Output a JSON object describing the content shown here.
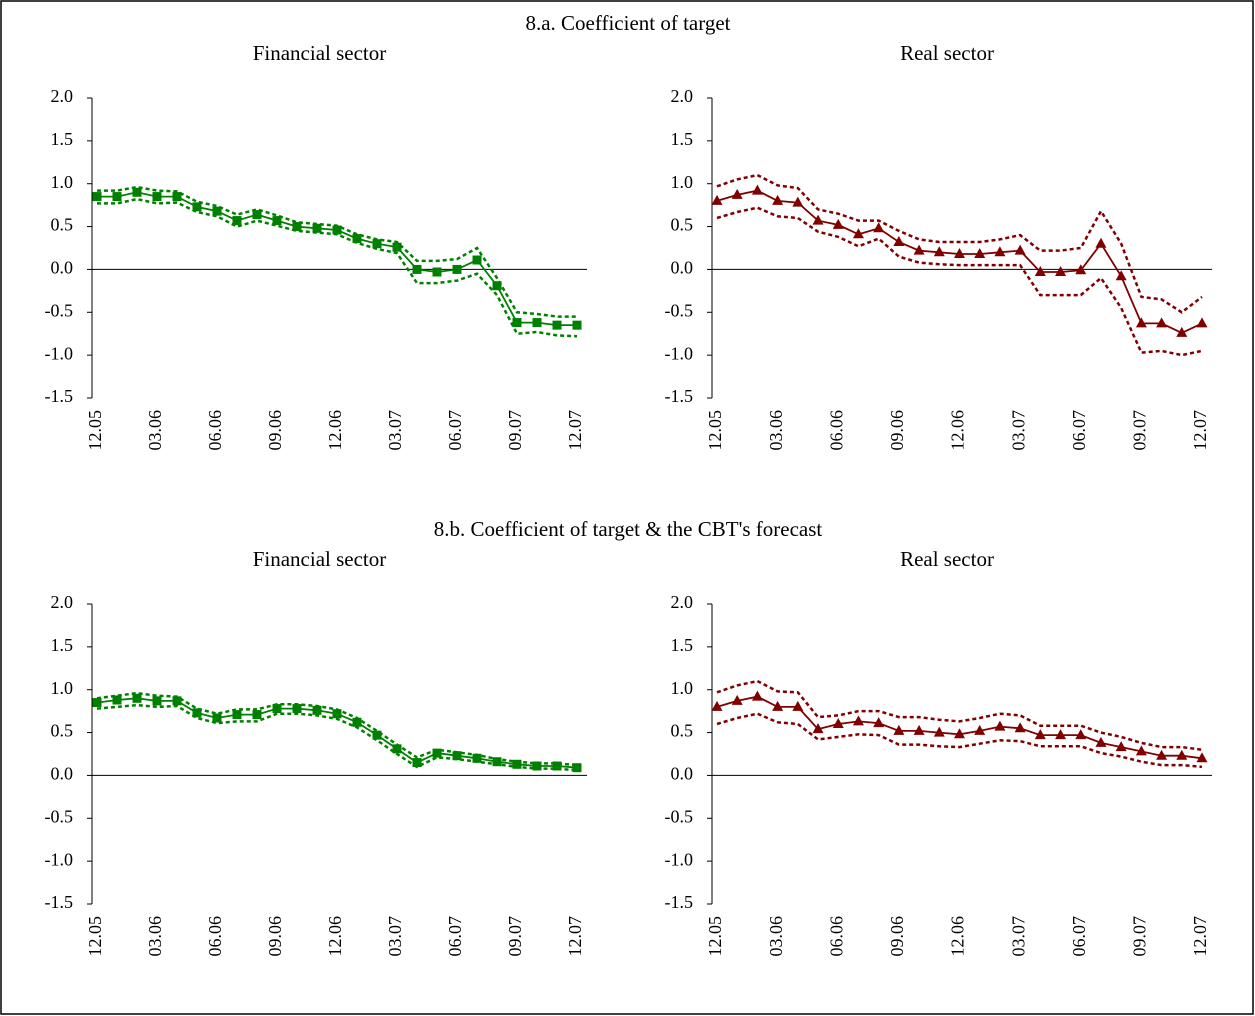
{
  "section_titles": [
    "8.a. Coefficient of target",
    "8.b. Coefficient of  target & the CBT's forecast"
  ],
  "chart_data": [
    {
      "type": "line",
      "title": "Financial sector",
      "section": 0,
      "categories": [
        "12.05",
        null,
        null,
        "03.06",
        null,
        null,
        "06.06",
        null,
        null,
        "09.06",
        null,
        null,
        "12.06",
        null,
        null,
        "03.07",
        null,
        null,
        "06.07",
        null,
        null,
        "09.07",
        null,
        null,
        "12.07"
      ],
      "ylim": [
        -1.5,
        2.0
      ],
      "yticks": [
        {
          "value": -1.5,
          "label": "-1.5"
        },
        {
          "value": -1.0,
          "label": "-1.0"
        },
        {
          "value": -0.5,
          "label": "-0.5"
        },
        {
          "value": 0.0,
          "label": "0.0"
        },
        {
          "value": 0.5,
          "label": "0.5"
        },
        {
          "value": 1.0,
          "label": "1.0"
        },
        {
          "value": 1.5,
          "label": "1.5"
        },
        {
          "value": 2.0,
          "label": "2.0"
        }
      ],
      "series": [
        {
          "color": "#008000",
          "style": "solid",
          "marker": "square",
          "values": [
            0.85,
            0.85,
            0.9,
            0.85,
            0.85,
            0.73,
            0.68,
            0.57,
            0.64,
            0.57,
            0.5,
            0.48,
            0.46,
            0.36,
            0.3,
            0.26,
            0.0,
            -0.03,
            0.0,
            0.11,
            -0.19,
            -0.62,
            -0.62,
            -0.65,
            -0.65
          ]
        },
        {
          "color": "#008000",
          "style": "dashed",
          "values": [
            0.92,
            0.92,
            0.96,
            0.92,
            0.91,
            0.79,
            0.74,
            0.64,
            0.7,
            0.63,
            0.55,
            0.53,
            0.51,
            0.41,
            0.35,
            0.32,
            0.1,
            0.1,
            0.12,
            0.25,
            -0.1,
            -0.5,
            -0.52,
            -0.55,
            -0.55
          ]
        },
        {
          "color": "#008000",
          "style": "dashed",
          "values": [
            0.77,
            0.77,
            0.82,
            0.77,
            0.78,
            0.67,
            0.62,
            0.5,
            0.57,
            0.51,
            0.45,
            0.43,
            0.41,
            0.31,
            0.24,
            0.19,
            -0.16,
            -0.16,
            -0.13,
            -0.05,
            -0.3,
            -0.75,
            -0.73,
            -0.77,
            -0.78
          ]
        }
      ]
    },
    {
      "type": "line",
      "title": "Real sector",
      "section": 0,
      "categories": [
        "12.05",
        null,
        null,
        "03.06",
        null,
        null,
        "06.06",
        null,
        null,
        "09.06",
        null,
        null,
        "12.06",
        null,
        null,
        "03.07",
        null,
        null,
        "06.07",
        null,
        null,
        "09.07",
        null,
        null,
        "12.07"
      ],
      "ylim": [
        -1.5,
        2.0
      ],
      "yticks": [
        {
          "value": -1.5,
          "label": "-1.5"
        },
        {
          "value": -1.0,
          "label": "-1.0"
        },
        {
          "value": -0.5,
          "label": "-0.5"
        },
        {
          "value": 0.0,
          "label": "0.0"
        },
        {
          "value": 0.5,
          "label": "0.5"
        },
        {
          "value": 1.0,
          "label": "1.0"
        },
        {
          "value": 1.5,
          "label": "1.5"
        },
        {
          "value": 2.0,
          "label": "2.0"
        }
      ],
      "series": [
        {
          "color": "#800000",
          "style": "solid",
          "marker": "triangle",
          "values": [
            0.8,
            0.87,
            0.92,
            0.8,
            0.78,
            0.57,
            0.52,
            0.41,
            0.48,
            0.32,
            0.22,
            0.2,
            0.18,
            0.18,
            0.2,
            0.22,
            -0.03,
            -0.03,
            -0.01,
            0.3,
            -0.08,
            -0.63,
            -0.63,
            -0.74,
            -0.63
          ]
        },
        {
          "color": "#800000",
          "style": "dashed",
          "values": [
            0.97,
            1.05,
            1.1,
            0.98,
            0.95,
            0.7,
            0.65,
            0.57,
            0.57,
            0.45,
            0.35,
            0.32,
            0.32,
            0.32,
            0.35,
            0.4,
            0.22,
            0.22,
            0.25,
            0.68,
            0.3,
            -0.32,
            -0.35,
            -0.5,
            -0.32
          ]
        },
        {
          "color": "#800000",
          "style": "dashed",
          "values": [
            0.6,
            0.67,
            0.72,
            0.62,
            0.6,
            0.44,
            0.38,
            0.27,
            0.36,
            0.15,
            0.08,
            0.06,
            0.05,
            0.05,
            0.05,
            0.05,
            -0.3,
            -0.3,
            -0.3,
            -0.1,
            -0.45,
            -0.97,
            -0.95,
            -1.0,
            -0.95
          ]
        }
      ]
    },
    {
      "type": "line",
      "title": "Financial sector",
      "section": 1,
      "categories": [
        "12.05",
        null,
        null,
        "03.06",
        null,
        null,
        "06.06",
        null,
        null,
        "09.06",
        null,
        null,
        "12.06",
        null,
        null,
        "03.07",
        null,
        null,
        "06.07",
        null,
        null,
        "09.07",
        null,
        null,
        "12.07"
      ],
      "ylim": [
        -1.5,
        2.0
      ],
      "yticks": [
        {
          "value": -1.5,
          "label": "-1.5"
        },
        {
          "value": -1.0,
          "label": "-1.0"
        },
        {
          "value": -0.5,
          "label": "-0.5"
        },
        {
          "value": 0.0,
          "label": "0.0"
        },
        {
          "value": 0.5,
          "label": "0.5"
        },
        {
          "value": 1.0,
          "label": "1.0"
        },
        {
          "value": 1.5,
          "label": "1.5"
        },
        {
          "value": 2.0,
          "label": "2.0"
        }
      ],
      "series": [
        {
          "color": "#008000",
          "style": "solid",
          "marker": "square",
          "values": [
            0.85,
            0.88,
            0.9,
            0.87,
            0.87,
            0.73,
            0.67,
            0.71,
            0.71,
            0.78,
            0.78,
            0.76,
            0.72,
            0.62,
            0.47,
            0.31,
            0.15,
            0.26,
            0.23,
            0.2,
            0.16,
            0.13,
            0.11,
            0.11,
            0.09
          ]
        },
        {
          "color": "#008000",
          "style": "dashed",
          "values": [
            0.9,
            0.93,
            0.96,
            0.93,
            0.92,
            0.78,
            0.72,
            0.77,
            0.77,
            0.83,
            0.83,
            0.81,
            0.77,
            0.67,
            0.52,
            0.36,
            0.21,
            0.3,
            0.27,
            0.24,
            0.19,
            0.16,
            0.14,
            0.14,
            0.12
          ]
        },
        {
          "color": "#008000",
          "style": "dashed",
          "values": [
            0.78,
            0.8,
            0.82,
            0.8,
            0.81,
            0.67,
            0.61,
            0.63,
            0.63,
            0.72,
            0.72,
            0.7,
            0.66,
            0.56,
            0.41,
            0.25,
            0.1,
            0.21,
            0.19,
            0.16,
            0.13,
            0.1,
            0.08,
            0.08,
            0.06
          ]
        }
      ]
    },
    {
      "type": "line",
      "title": "Real sector",
      "section": 1,
      "categories": [
        "12.05",
        null,
        null,
        "03.06",
        null,
        null,
        "06.06",
        null,
        null,
        "09.06",
        null,
        null,
        "12.06",
        null,
        null,
        "03.07",
        null,
        null,
        "06.07",
        null,
        null,
        "09.07",
        null,
        null,
        "12.07"
      ],
      "ylim": [
        -1.5,
        2.0
      ],
      "yticks": [
        {
          "value": -1.5,
          "label": "-1.5"
        },
        {
          "value": -1.0,
          "label": "-1.0"
        },
        {
          "value": -0.5,
          "label": "-0.5"
        },
        {
          "value": 0.0,
          "label": "0.0"
        },
        {
          "value": 0.5,
          "label": "0.5"
        },
        {
          "value": 1.0,
          "label": "1.0"
        },
        {
          "value": 1.5,
          "label": "1.5"
        },
        {
          "value": 2.0,
          "label": "2.0"
        }
      ],
      "series": [
        {
          "color": "#800000",
          "style": "solid",
          "marker": "triangle",
          "values": [
            0.8,
            0.87,
            0.92,
            0.8,
            0.8,
            0.54,
            0.6,
            0.63,
            0.61,
            0.52,
            0.52,
            0.5,
            0.48,
            0.52,
            0.57,
            0.55,
            0.47,
            0.47,
            0.47,
            0.38,
            0.33,
            0.28,
            0.23,
            0.23,
            0.2
          ]
        },
        {
          "color": "#800000",
          "style": "dashed",
          "values": [
            0.97,
            1.05,
            1.1,
            0.98,
            0.97,
            0.68,
            0.7,
            0.75,
            0.75,
            0.68,
            0.68,
            0.65,
            0.63,
            0.67,
            0.72,
            0.7,
            0.58,
            0.58,
            0.58,
            0.5,
            0.45,
            0.38,
            0.33,
            0.33,
            0.3
          ]
        },
        {
          "color": "#800000",
          "style": "dashed",
          "values": [
            0.6,
            0.67,
            0.72,
            0.62,
            0.6,
            0.42,
            0.45,
            0.48,
            0.47,
            0.36,
            0.36,
            0.34,
            0.33,
            0.37,
            0.41,
            0.4,
            0.34,
            0.34,
            0.34,
            0.26,
            0.22,
            0.16,
            0.12,
            0.12,
            0.1
          ]
        }
      ]
    }
  ]
}
